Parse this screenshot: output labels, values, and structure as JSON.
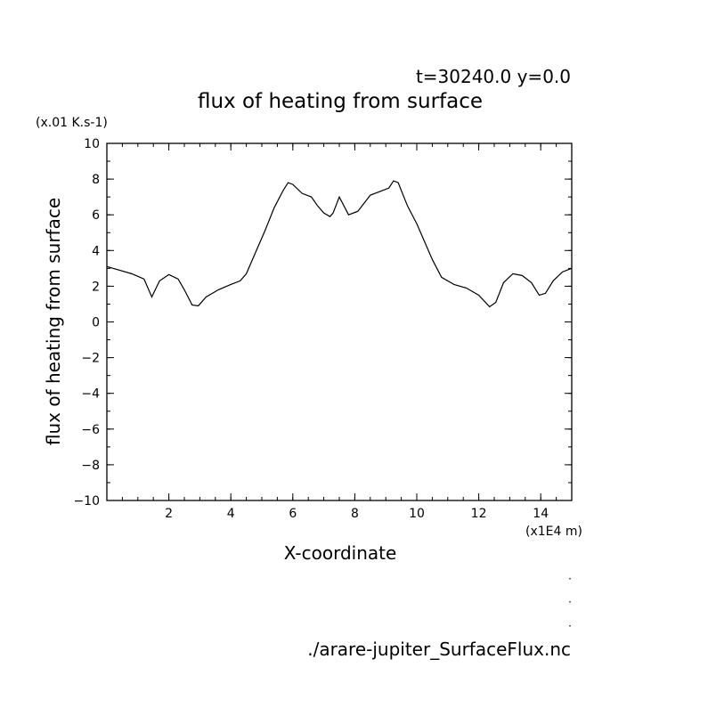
{
  "header": {
    "time_label": "t=30240.0 y=0.0"
  },
  "footer": {
    "file_label": "./arare-jupiter_SurfaceFlux.nc"
  },
  "chart_data": {
    "type": "line",
    "title": "flux of heating from surface",
    "xlabel": "X-coordinate",
    "ylabel": "flux of heating from surface",
    "x_unit": "(x1E4 m)",
    "y_unit": "(x.01 K.s-1)",
    "xlim": [
      0,
      15
    ],
    "ylim": [
      -10,
      10
    ],
    "x_ticks": [
      2,
      4,
      6,
      8,
      10,
      12,
      14
    ],
    "x_tick_labels": [
      "2",
      "4",
      "6",
      "8",
      "10",
      "12",
      "14"
    ],
    "y_ticks": [
      -10,
      -8,
      -6,
      -4,
      -2,
      0,
      2,
      4,
      6,
      8,
      10
    ],
    "y_tick_labels": [
      "−10",
      "−8",
      "−6",
      "−4",
      "−2",
      "0",
      "2",
      "4",
      "6",
      "8",
      "10"
    ],
    "grid": false,
    "series": [
      {
        "x": [
          0.0,
          0.4,
          0.8,
          1.2,
          1.45,
          1.7,
          2.0,
          2.3,
          2.5,
          2.75,
          2.95,
          3.2,
          3.6,
          4.0,
          4.3,
          4.5,
          4.8,
          5.1,
          5.4,
          5.7,
          5.85,
          6.0,
          6.3,
          6.6,
          6.8,
          7.0,
          7.2,
          7.3,
          7.5,
          7.8,
          8.1,
          8.5,
          8.8,
          9.1,
          9.25,
          9.4,
          9.7,
          10.0,
          10.5,
          10.8,
          11.2,
          11.6,
          12.0,
          12.35,
          12.55,
          12.8,
          13.1,
          13.4,
          13.7,
          13.95,
          14.15,
          14.4,
          14.7,
          15.0
        ],
        "y": [
          3.1,
          2.9,
          2.7,
          2.4,
          1.4,
          2.3,
          2.65,
          2.4,
          1.8,
          0.95,
          0.9,
          1.4,
          1.8,
          2.1,
          2.3,
          2.7,
          3.9,
          5.1,
          6.4,
          7.4,
          7.8,
          7.7,
          7.2,
          7.0,
          6.5,
          6.1,
          5.9,
          6.1,
          7.0,
          6.0,
          6.2,
          7.1,
          7.3,
          7.5,
          7.9,
          7.8,
          6.5,
          5.5,
          3.5,
          2.5,
          2.1,
          1.9,
          1.5,
          0.85,
          1.1,
          2.2,
          2.7,
          2.6,
          2.2,
          1.5,
          1.6,
          2.3,
          2.8,
          3.0
        ]
      }
    ],
    "extra_marks": [
      "˙",
      "˙",
      "˙"
    ]
  }
}
